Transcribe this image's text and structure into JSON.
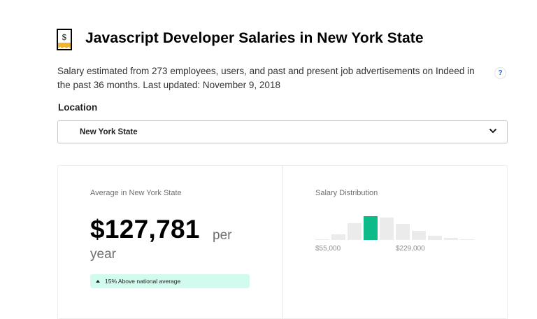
{
  "header": {
    "icon": "salary-receipt-icon",
    "title": "Javascript Developer Salaries in New York State"
  },
  "description": {
    "text": "Salary estimated from 273 employees, users, and past and present job advertisements on Indeed in the past 36 months. Last updated: November 9, 2018",
    "help_icon": "?"
  },
  "location": {
    "label": "Location",
    "selected": "New York State"
  },
  "average": {
    "label": "Average in New York State",
    "amount": "$127,781",
    "per": "per",
    "period": "year",
    "badge": "15% Above national average",
    "badge_color": "#d1fbee"
  },
  "distribution": {
    "label": "Salary Distribution",
    "active_color": "#0cbb88",
    "bar_color": "#ebebeb",
    "ticks": [
      "$55,000",
      "$229,000"
    ]
  },
  "chart_data": {
    "type": "bar",
    "title": "Salary Distribution",
    "categories": [
      "bin1",
      "bin2",
      "bin3",
      "bin4",
      "bin5",
      "bin6",
      "bin7",
      "bin8",
      "bin9",
      "bin10"
    ],
    "values": [
      1,
      8,
      24,
      34,
      32,
      23,
      13,
      6,
      3,
      1
    ],
    "highlighted_index": 3,
    "tick_labels": [
      {
        "label": "$55,000",
        "at_bin": 0
      },
      {
        "label": "$229,000",
        "at_bin": 5
      }
    ],
    "xlabel": "",
    "ylabel": ""
  }
}
